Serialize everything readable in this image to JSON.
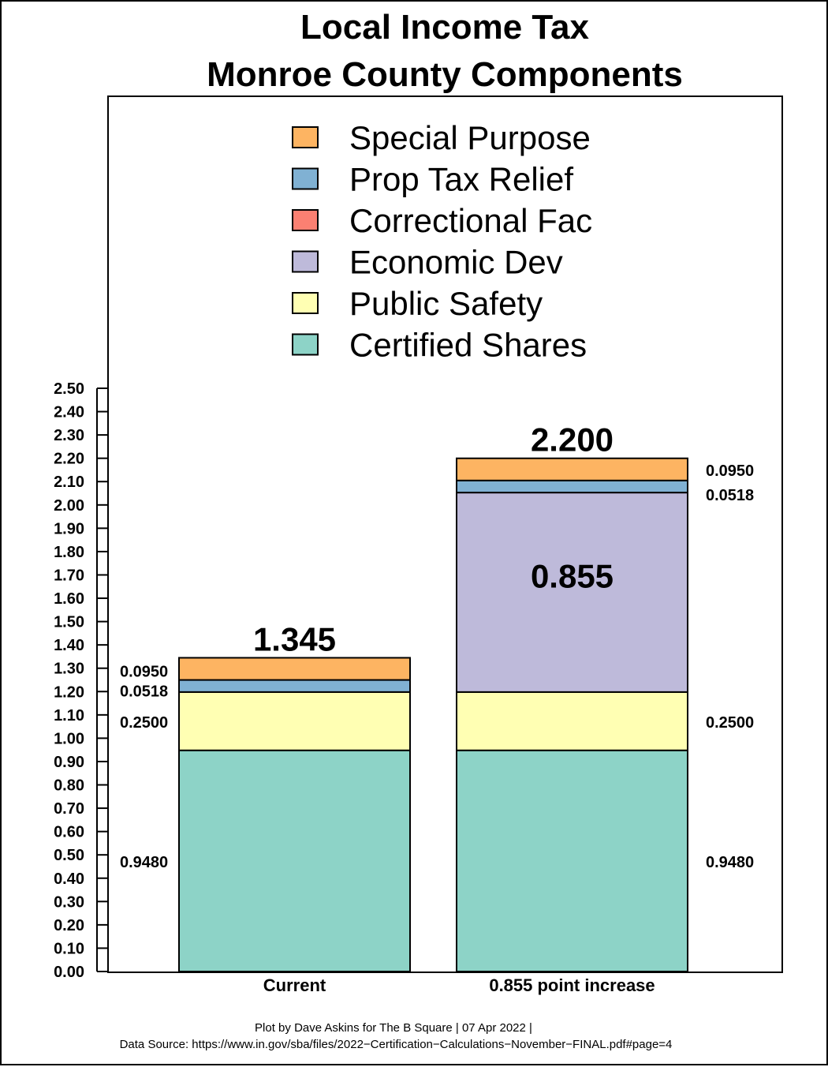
{
  "chart_data": {
    "type": "bar",
    "stacked": true,
    "title_lines": [
      "Local Income Tax",
      "Monroe County Components"
    ],
    "categories": [
      "Current",
      "0.855 point increase"
    ],
    "series": [
      {
        "name": "Certified Shares",
        "values": [
          0.948,
          0.948
        ],
        "labels": [
          "0.9480",
          "0.9480"
        ],
        "color": "#8dd3c7"
      },
      {
        "name": "Public Safety",
        "values": [
          0.25,
          0.25
        ],
        "labels": [
          "0.2500",
          "0.2500"
        ],
        "color": "#ffffb3"
      },
      {
        "name": "Economic Dev",
        "values": [
          0,
          0.855
        ],
        "labels": [
          "",
          "0.855"
        ],
        "color": "#bebada"
      },
      {
        "name": "Correctional Fac",
        "values": [
          0,
          0
        ],
        "labels": [
          "",
          ""
        ],
        "color": "#fb8072"
      },
      {
        "name": "Prop Tax Relief",
        "values": [
          0.0518,
          0.0518
        ],
        "labels": [
          "0.0518",
          "0.0518"
        ],
        "color": "#80b1d3"
      },
      {
        "name": "Special Purpose",
        "values": [
          0.095,
          0.095
        ],
        "labels": [
          "0.0950",
          "0.0950"
        ],
        "color": "#fdb462"
      }
    ],
    "totals": [
      "1.345",
      "2.200"
    ],
    "ylim": [
      0,
      2.5
    ],
    "yticks": [
      "0.00",
      "0.10",
      "0.20",
      "0.30",
      "0.40",
      "0.50",
      "0.60",
      "0.70",
      "0.80",
      "0.90",
      "1.00",
      "1.10",
      "1.20",
      "1.30",
      "1.40",
      "1.50",
      "1.60",
      "1.70",
      "1.80",
      "1.90",
      "2.00",
      "2.10",
      "2.20",
      "2.30",
      "2.40",
      "2.50"
    ],
    "legend_order": [
      "Special Purpose",
      "Prop Tax Relief",
      "Correctional Fac",
      "Economic Dev",
      "Public Safety",
      "Certified Shares"
    ],
    "legend_position": "top",
    "grid": false
  },
  "footer": {
    "credit": "Plot by Dave Askins for The B Square | 07 Apr 2022 |",
    "source": "Data Source: https://www.in.gov/sba/files/2022−Certification−Calculations−November−FINAL.pdf#page=4"
  }
}
